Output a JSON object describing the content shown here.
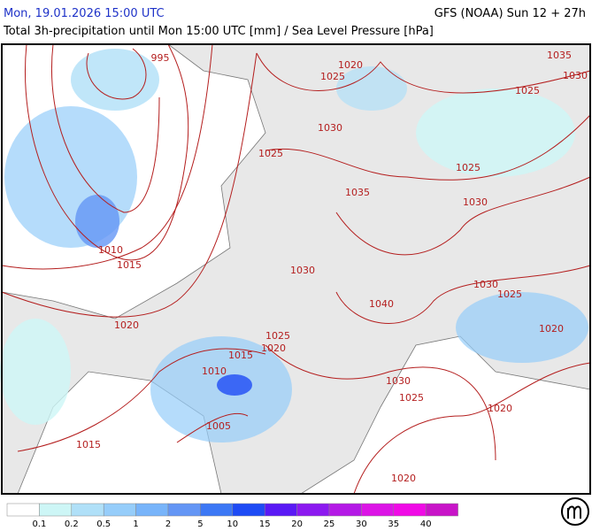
{
  "header": {
    "valid_time": "Mon, 19.01.2026 15:00 UTC",
    "model_run": "GFS (NOAA) Sun 12 + 27h",
    "description": "Total 3h-precipitation until Mon 15:00 UTC [mm] / Sea Level Pressure [hPa]"
  },
  "isobar_labels": [
    995,
    1020,
    1025,
    1035,
    1030,
    1025,
    1030,
    1025,
    1025,
    1035,
    1030,
    1010,
    1015,
    1030,
    1040,
    1030,
    1025,
    1020,
    1025,
    1020,
    1015,
    1020,
    1010,
    1030,
    1025,
    1020,
    1005,
    1015,
    1020
  ],
  "legend": {
    "colors": [
      "#ffffff",
      "#cdf6f6",
      "#b0e0f8",
      "#96cdfa",
      "#78b4fa",
      "#6496f5",
      "#3c78f5",
      "#1e4bf5",
      "#5a19f5",
      "#8c19f0",
      "#b419e6",
      "#dc14e6",
      "#f00ae6",
      "#c814c8"
    ],
    "labels": [
      0.1,
      0.2,
      0.5,
      1,
      2,
      5,
      10,
      15,
      20,
      25,
      30,
      35,
      40
    ]
  }
}
